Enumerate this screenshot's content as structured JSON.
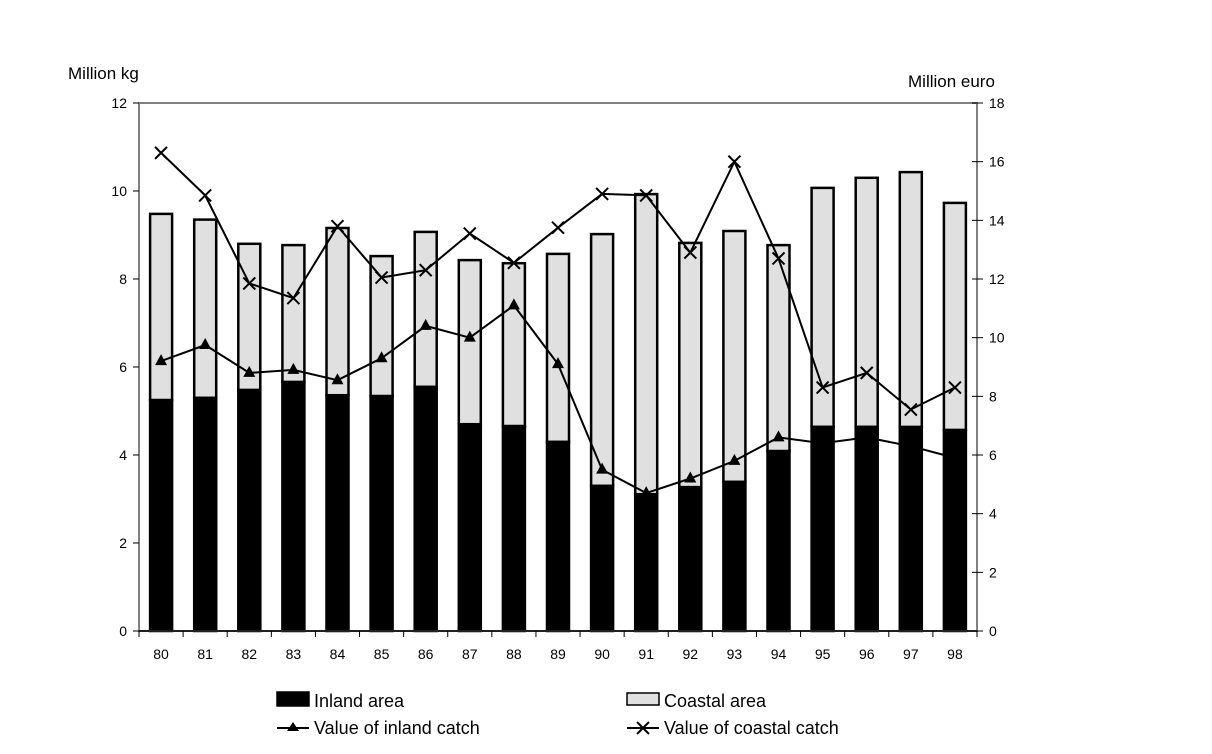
{
  "chart_data": {
    "type": "bar",
    "subtype": "stacked-bar-with-lines-dual-axis",
    "categories": [
      "80",
      "81",
      "82",
      "83",
      "84",
      "85",
      "86",
      "87",
      "88",
      "89",
      "90",
      "91",
      "92",
      "93",
      "94",
      "95",
      "96",
      "97",
      "98"
    ],
    "y_left": {
      "label": "Million kg",
      "lim": [
        0,
        12
      ],
      "ticks": [
        0,
        2,
        4,
        6,
        8,
        10,
        12
      ]
    },
    "y_right": {
      "label": "Million euro",
      "lim": [
        0,
        18
      ],
      "ticks": [
        0,
        2,
        4,
        6,
        8,
        10,
        12,
        14,
        16,
        18
      ]
    },
    "grid": false,
    "legend_position": "bottom",
    "bar_series": [
      {
        "name": "Inland area",
        "axis": "left",
        "color": "#000000",
        "values": [
          5.25,
          5.3,
          5.48,
          5.66,
          5.36,
          5.34,
          5.55,
          4.7,
          4.66,
          4.3,
          3.3,
          3.11,
          3.27,
          3.39,
          4.09,
          4.64,
          4.64,
          4.64,
          4.57
        ]
      },
      {
        "name": "Coastal area",
        "axis": "left",
        "color": "#e0e0e0",
        "values": [
          4.23,
          4.05,
          3.32,
          3.11,
          3.8,
          3.18,
          3.52,
          3.73,
          3.7,
          4.27,
          5.72,
          6.82,
          5.55,
          5.7,
          4.68,
          5.43,
          5.66,
          5.79,
          5.16
        ]
      }
    ],
    "line_series": [
      {
        "name": "Value of inland catch",
        "axis": "right",
        "marker": "triangle",
        "values": [
          9.2,
          9.75,
          8.8,
          8.9,
          8.55,
          9.3,
          10.4,
          10.0,
          11.1,
          9.1,
          5.5,
          4.7,
          5.2,
          5.8,
          6.6,
          6.4,
          6.6,
          6.3,
          5.9
        ]
      },
      {
        "name": "Value of coastal catch",
        "axis": "right",
        "marker": "x",
        "values": [
          16.3,
          14.85,
          11.85,
          11.35,
          13.8,
          12.05,
          12.3,
          13.55,
          12.55,
          13.75,
          14.9,
          14.85,
          12.9,
          16.0,
          12.7,
          8.3,
          8.8,
          7.55,
          8.3
        ]
      }
    ]
  }
}
